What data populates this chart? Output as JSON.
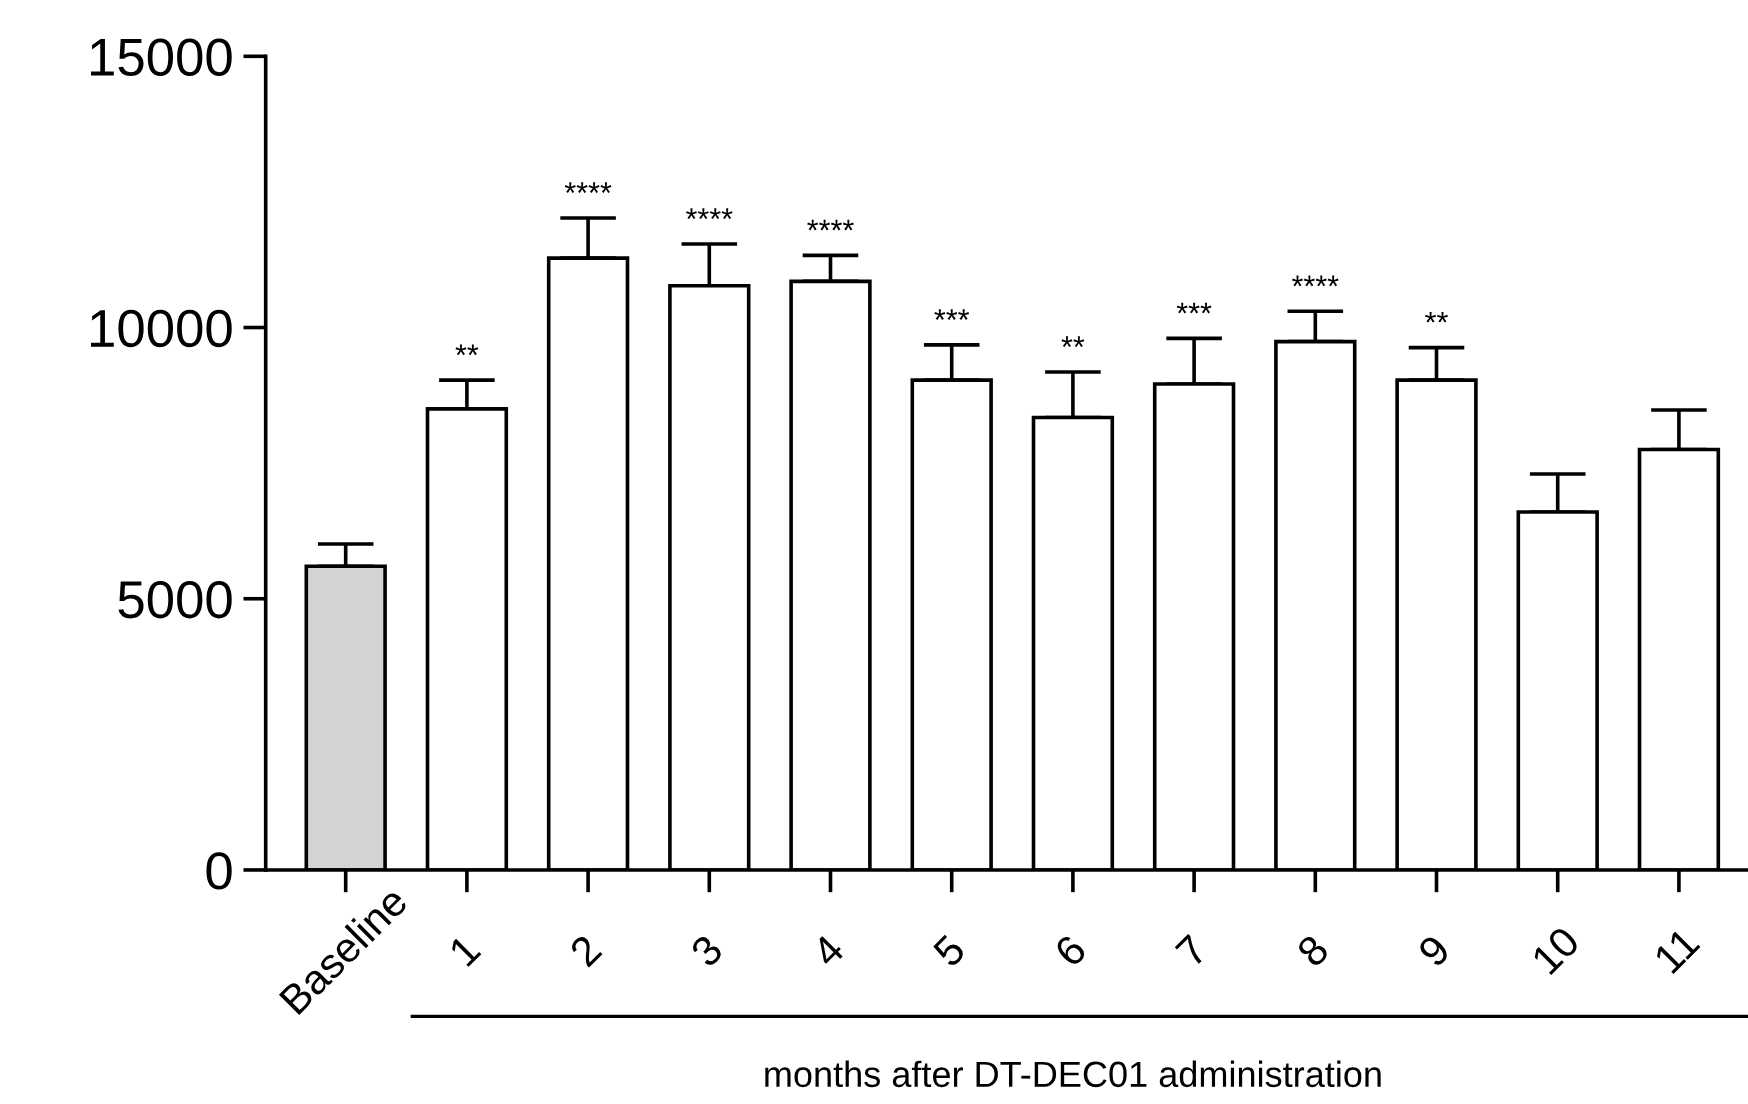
{
  "chart_data": {
    "type": "bar",
    "categories": [
      "Baseline",
      "1",
      "2",
      "3",
      "4",
      "5",
      "6",
      "7",
      "8",
      "9",
      "10",
      "11"
    ],
    "values": [
      5600,
      8500,
      11280,
      10770,
      10850,
      9030,
      8340,
      8960,
      9740,
      9030,
      6600,
      7750
    ],
    "colors": [
      "#d3d3d3",
      "#ffffff",
      "#ffffff",
      "#ffffff",
      "#ffffff",
      "#ffffff",
      "#ffffff",
      "#ffffff",
      "#ffffff",
      "#ffffff",
      "#ffffff",
      "#ffffff"
    ],
    "errors": [
      [
        5600,
        6010
      ],
      [
        8500,
        9030
      ],
      [
        11280,
        12020
      ],
      [
        10770,
        11540
      ],
      [
        10850,
        11330
      ],
      [
        9030,
        9680
      ],
      [
        8340,
        9180
      ],
      [
        8960,
        9800
      ],
      [
        9740,
        10300
      ],
      [
        9030,
        9630
      ],
      [
        6600,
        7300
      ],
      [
        7750,
        8480
      ]
    ],
    "xlabel": "months after DT-DEC01 administration",
    "ylim": [
      0,
      15000
    ],
    "yticks": [
      0,
      5000,
      10000,
      15000
    ],
    "grid": false,
    "legend": false,
    "annotations": [
      {
        "text": "**",
        "x": "1",
        "y": 9030
      },
      {
        "text": "****",
        "x": "2",
        "y": 12020
      },
      {
        "text": "****",
        "x": "3",
        "y": 11540
      },
      {
        "text": "****",
        "x": "4",
        "y": 11330
      },
      {
        "text": "***",
        "x": "5",
        "y": 9680
      },
      {
        "text": "**",
        "x": "6",
        "y": 9180
      },
      {
        "text": "***",
        "x": "7",
        "y": 9800
      },
      {
        "text": "****",
        "x": "8",
        "y": 10300
      },
      {
        "text": "**",
        "x": "9",
        "y": 9630
      }
    ]
  }
}
